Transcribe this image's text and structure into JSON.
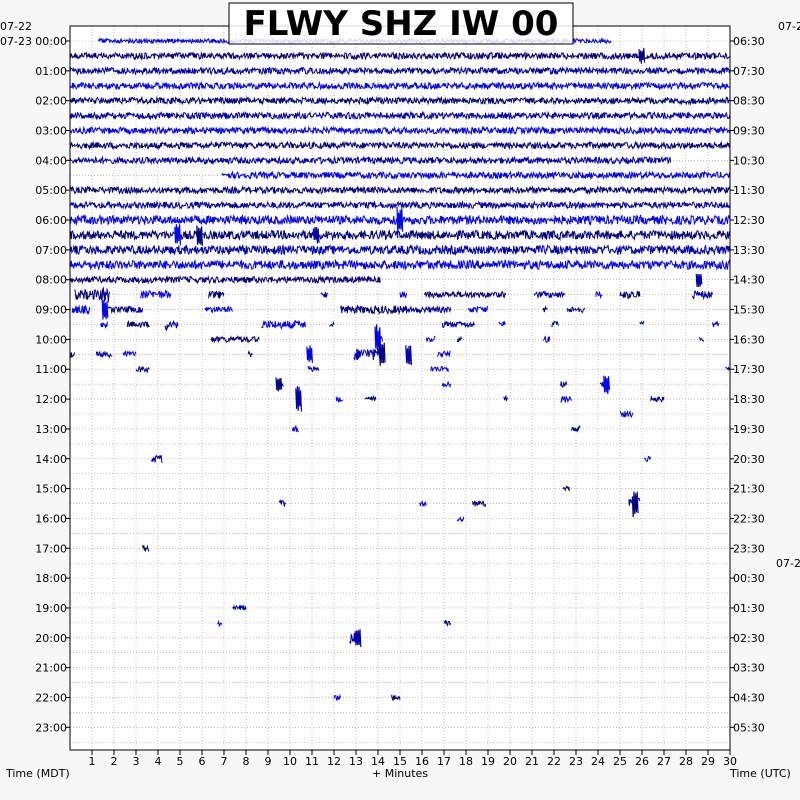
{
  "title": "FLWY SHZ IW 00",
  "chart_data": {
    "type": "helicorder",
    "title": "FLWY SHZ IW 00",
    "xlabel": "+ Minutes",
    "left_axis_title": "Time (MDT)",
    "right_axis_title": "Time (UTC)",
    "x_range": [
      0,
      30
    ],
    "x_tick_labels": [
      "1",
      "2",
      "3",
      "4",
      "5",
      "6",
      "7",
      "8",
      "9",
      "10",
      "11",
      "12",
      "13",
      "14",
      "15",
      "16",
      "17",
      "18",
      "19",
      "20",
      "21",
      "22",
      "23",
      "24",
      "25",
      "26",
      "27",
      "28",
      "29",
      "30"
    ],
    "left_date_top": "07-22",
    "left_date": "07-23",
    "right_date_top": "07-2",
    "right_date_mid": "07-2",
    "left_tick_labels": [
      "00:00",
      "01:00",
      "02:00",
      "03:00",
      "04:00",
      "05:00",
      "06:00",
      "07:00",
      "08:00",
      "09:00",
      "10:00",
      "11:00",
      "12:00",
      "13:00",
      "14:00",
      "15:00",
      "16:00",
      "17:00",
      "18:00",
      "19:00",
      "20:00",
      "21:00",
      "22:00",
      "23:00"
    ],
    "right_tick_labels": [
      "06:30",
      "07:30",
      "08:30",
      "09:30",
      "10:30",
      "11:30",
      "12:30",
      "13:30",
      "14:30",
      "15:30",
      "16:30",
      "17:30",
      "18:30",
      "19:30",
      "20:30",
      "21:30",
      "22:30",
      "23:30",
      "00:30",
      "01:30",
      "02:30",
      "03:30",
      "04:30",
      "05:30"
    ],
    "trace_colors": [
      "#0000ff",
      "#000080",
      "#0000b0"
    ],
    "grid": true
  }
}
